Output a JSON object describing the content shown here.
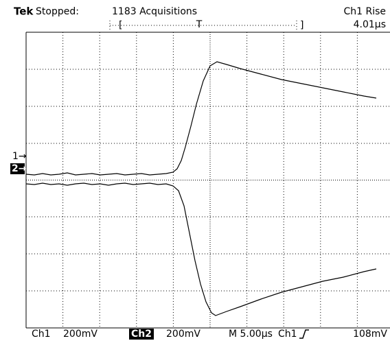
{
  "header": {
    "brand": "Tek",
    "status": "Stopped:",
    "acquisitions": "1183 Acquisitions",
    "measurement": {
      "label": "Ch1 Rise",
      "value": "4.01µs"
    },
    "record_left": "[",
    "trigger_marker": "T",
    "record_right": "]"
  },
  "markers": {
    "ch1": "1→",
    "ch2": "2→"
  },
  "footer": {
    "ch1": "Ch1",
    "ch1_scale": "200mV",
    "ch2": "Ch2",
    "ch2_scale": "200mV",
    "timebase": "M 5.00µs",
    "trigger_source": "Ch1",
    "trigger_level": "108mV"
  }
}
